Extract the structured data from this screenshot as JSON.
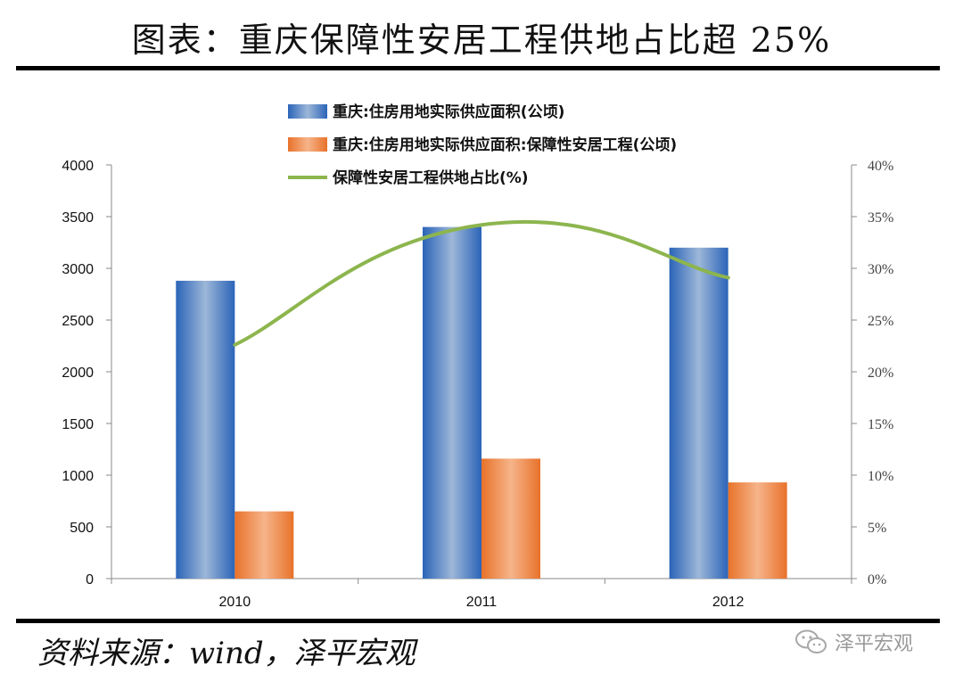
{
  "header": {
    "title": "图表：重庆保障性安居工程供地占比超 25%"
  },
  "footer": {
    "source": "资料来源：wind，泽平宏观",
    "watermark": "泽平宏观"
  },
  "colors": {
    "total": "#2F6FC2",
    "affordable": "#EE7A2E",
    "ratio": "#8DB54E"
  },
  "chart_data": {
    "type": "bar",
    "categories": [
      "2010",
      "2011",
      "2012"
    ],
    "series": [
      {
        "name": "重庆:住房用地实际供应面积(公顷)",
        "type": "bar",
        "axis": "left",
        "values": [
          2880,
          3400,
          3200
        ]
      },
      {
        "name": "重庆:住房用地实际供应面积:保障性安居工程(公顷)",
        "type": "bar",
        "axis": "left",
        "values": [
          650,
          1160,
          930
        ]
      },
      {
        "name": "保障性安居工程供地占比(%)",
        "type": "line",
        "axis": "right",
        "values": [
          22.6,
          34.2,
          29.1
        ]
      }
    ],
    "y_left": {
      "min": 0,
      "max": 4000,
      "ticks": [
        "0",
        "500",
        "1000",
        "1500",
        "2000",
        "2500",
        "3000",
        "3500",
        "4000"
      ]
    },
    "y_right": {
      "min": 0,
      "max": 40,
      "ticks": [
        "0%",
        "5%",
        "10%",
        "15%",
        "20%",
        "25%",
        "30%",
        "35%",
        "40%"
      ]
    },
    "legend_position": "top-center",
    "grid": false
  }
}
